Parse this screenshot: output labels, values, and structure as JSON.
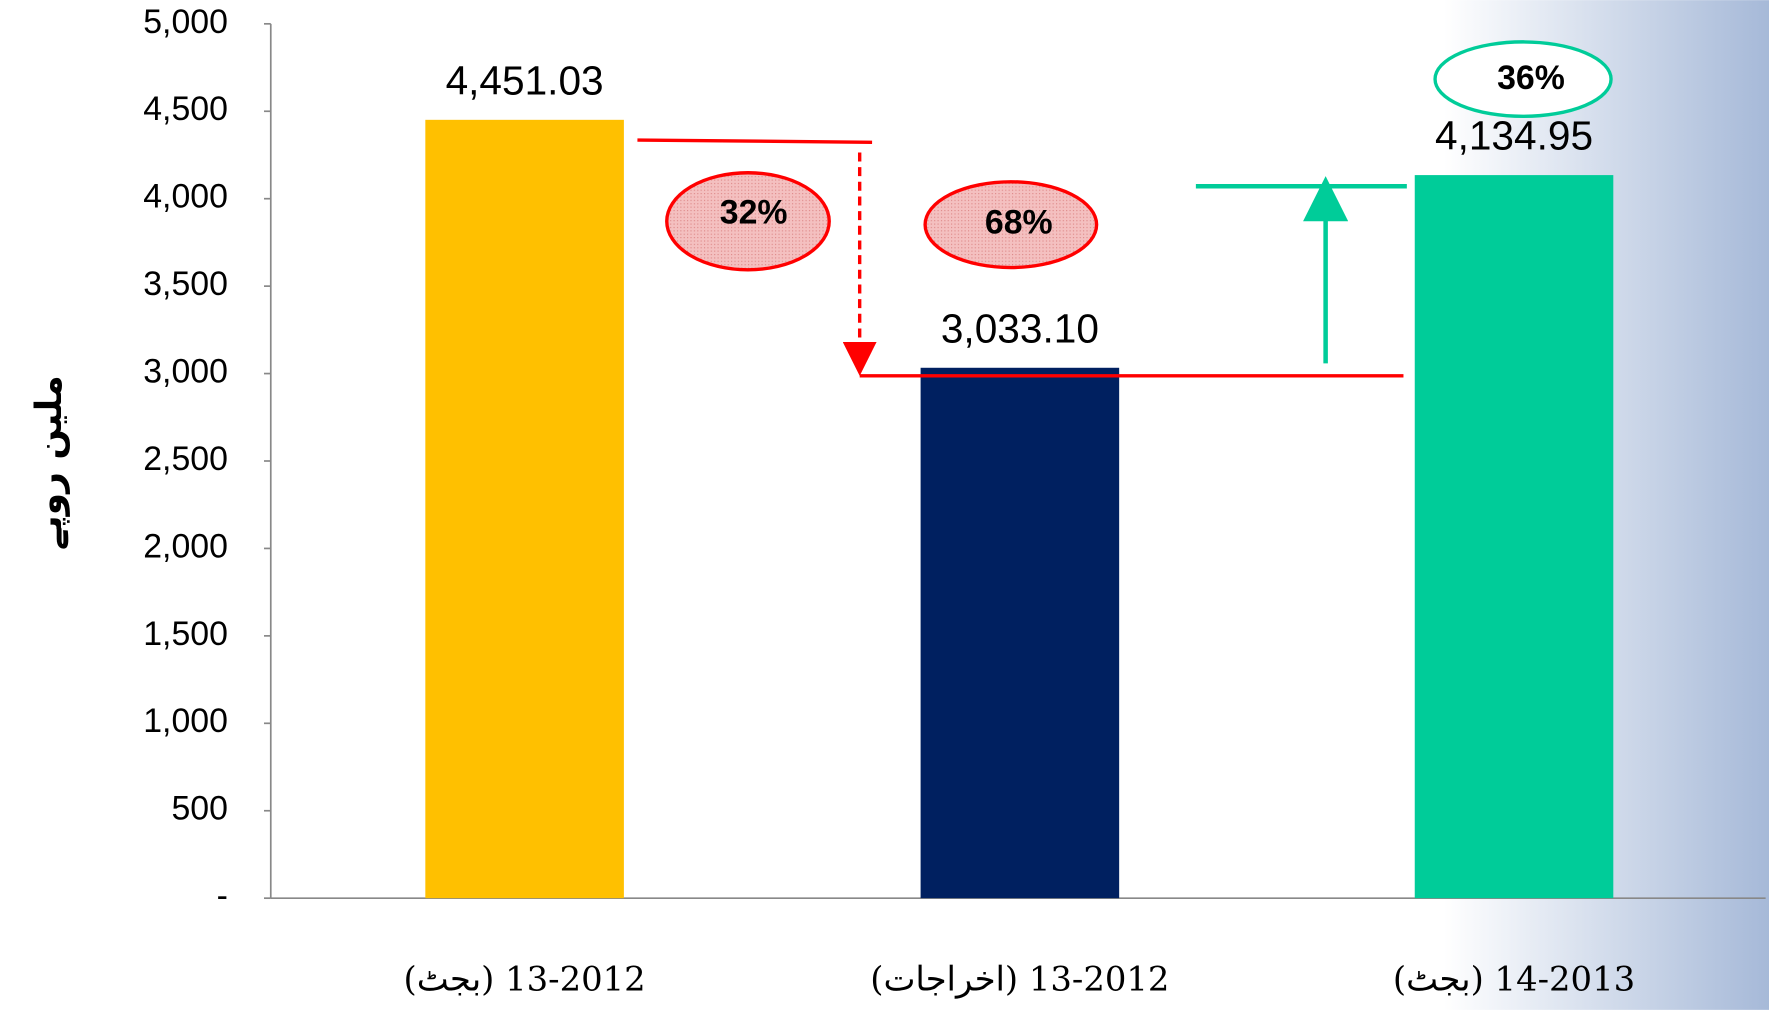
{
  "chart_data": {
    "type": "bar",
    "y_label": "ملین روپے",
    "categories": [
      "13-2012 (بجٹ)",
      "13-2012 (اخراجات)",
      "14-2013 (بجٹ)"
    ],
    "values": [
      4451.03,
      3033.1,
      4134.95
    ],
    "value_labels": [
      "4,451.03",
      "3,033.10",
      "4,134.95"
    ],
    "colors": [
      "#ffc000",
      "#002060",
      "#00cc99"
    ],
    "ylim": [
      0,
      5000
    ],
    "yticks": [
      {
        "value": 0,
        "label": "-"
      },
      500,
      {
        "value": 1000,
        "label": "1,000"
      },
      {
        "value": 1500,
        "label": "1,500"
      },
      {
        "value": 2000,
        "label": "2,000"
      },
      {
        "value": 2500,
        "label": "2,500"
      },
      {
        "value": 3000,
        "label": "3,000"
      },
      {
        "value": 3500,
        "label": "3,500"
      },
      {
        "value": 4000,
        "label": "4,000"
      },
      {
        "value": 4500,
        "label": "4,500"
      },
      {
        "value": 5000,
        "label": "5,000"
      }
    ],
    "annotations": [
      "32%",
      "68%",
      "36%"
    ]
  }
}
